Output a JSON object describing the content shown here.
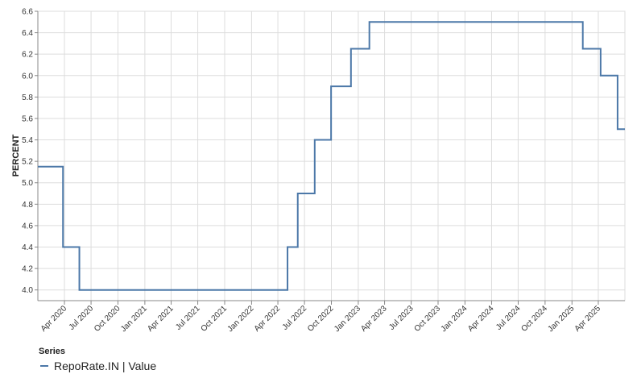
{
  "chart_data": {
    "type": "line",
    "title": "",
    "xlabel": "",
    "ylabel": "PERCENT",
    "xlim": [
      "2020-01-01",
      "2025-07-01"
    ],
    "ylim": [
      3.9,
      6.6
    ],
    "y_ticks": [
      "4.0",
      "4.2",
      "4.4",
      "4.6",
      "4.8",
      "5.0",
      "5.2",
      "5.4",
      "5.6",
      "5.8",
      "6.0",
      "6.2",
      "6.4",
      "6.6"
    ],
    "x_ticks": [
      {
        "label": "Apr 2020",
        "date": "2020-04-01"
      },
      {
        "label": "Jul 2020",
        "date": "2020-07-01"
      },
      {
        "label": "Oct 2020",
        "date": "2020-10-01"
      },
      {
        "label": "Jan 2021",
        "date": "2021-01-01"
      },
      {
        "label": "Apr 2021",
        "date": "2021-04-01"
      },
      {
        "label": "Jul 2021",
        "date": "2021-07-01"
      },
      {
        "label": "Oct 2021",
        "date": "2021-10-01"
      },
      {
        "label": "Jan 2022",
        "date": "2022-01-01"
      },
      {
        "label": "Apr 2022",
        "date": "2022-04-01"
      },
      {
        "label": "Jul 2022",
        "date": "2022-07-01"
      },
      {
        "label": "Oct 2022",
        "date": "2022-10-01"
      },
      {
        "label": "Jan 2023",
        "date": "2023-01-01"
      },
      {
        "label": "Apr 2023",
        "date": "2023-04-01"
      },
      {
        "label": "Jul 2023",
        "date": "2023-07-01"
      },
      {
        "label": "Oct 2023",
        "date": "2023-10-01"
      },
      {
        "label": "Jan 2024",
        "date": "2024-01-01"
      },
      {
        "label": "Apr 2024",
        "date": "2024-04-01"
      },
      {
        "label": "Jul 2024",
        "date": "2024-07-01"
      },
      {
        "label": "Oct 2024",
        "date": "2024-10-01"
      },
      {
        "label": "Jan 2025",
        "date": "2025-01-01"
      },
      {
        "label": "Apr 2025",
        "date": "2025-04-01"
      }
    ],
    "grid": true,
    "legend_title": "Series",
    "legend_position": "bottom-left",
    "series": [
      {
        "name": "RepoRate.IN | Value",
        "color": "#4c78a8",
        "step": true,
        "points": [
          {
            "x": "2020-01-01",
            "y": 5.15
          },
          {
            "x": "2020-03-27",
            "y": 4.4
          },
          {
            "x": "2020-05-22",
            "y": 4.0
          },
          {
            "x": "2022-05-04",
            "y": 4.4
          },
          {
            "x": "2022-06-08",
            "y": 4.9
          },
          {
            "x": "2022-08-05",
            "y": 5.4
          },
          {
            "x": "2022-09-30",
            "y": 5.9
          },
          {
            "x": "2022-12-07",
            "y": 6.25
          },
          {
            "x": "2023-02-08",
            "y": 6.5
          },
          {
            "x": "2025-02-07",
            "y": 6.25
          },
          {
            "x": "2025-04-09",
            "y": 6.0
          },
          {
            "x": "2025-06-06",
            "y": 5.5
          },
          {
            "x": "2025-07-01",
            "y": 5.5
          }
        ]
      }
    ]
  }
}
